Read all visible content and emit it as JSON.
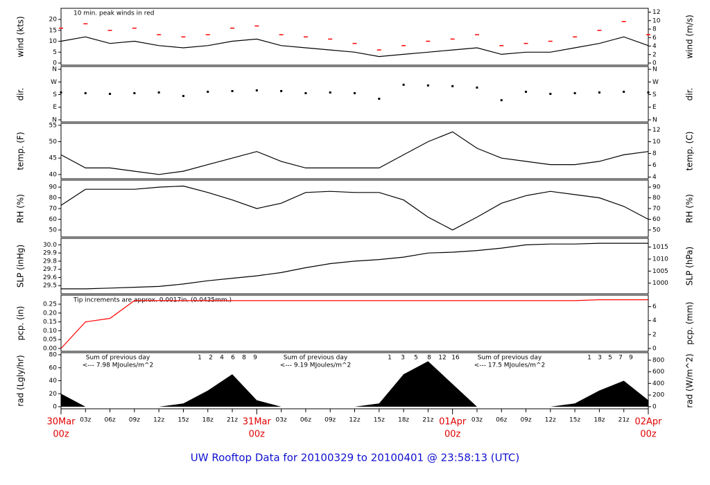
{
  "title": "UW Rooftop Data for 20100329  to  20100401 @ 23:58:13  (UTC)",
  "x_axis": {
    "x": [
      0,
      3,
      6,
      9,
      12,
      15,
      18,
      21,
      24,
      27,
      30,
      33,
      36,
      39,
      42,
      45,
      48,
      51,
      54,
      57,
      60,
      63,
      66,
      69,
      72
    ],
    "xlim": [
      0,
      72
    ],
    "xticks": [
      {
        "value": 3,
        "label": "03z"
      },
      {
        "value": 6,
        "label": "06z"
      },
      {
        "value": 9,
        "label": "09z"
      },
      {
        "value": 12,
        "label": "12z"
      },
      {
        "value": 15,
        "label": "15z"
      },
      {
        "value": 18,
        "label": "18z"
      },
      {
        "value": 21,
        "label": "21z"
      },
      {
        "value": 27,
        "label": "03z"
      },
      {
        "value": 30,
        "label": "06z"
      },
      {
        "value": 33,
        "label": "09z"
      },
      {
        "value": 36,
        "label": "12z"
      },
      {
        "value": 39,
        "label": "15z"
      },
      {
        "value": 42,
        "label": "18z"
      },
      {
        "value": 45,
        "label": "21z"
      },
      {
        "value": 51,
        "label": "03z"
      },
      {
        "value": 54,
        "label": "06z"
      },
      {
        "value": 57,
        "label": "09z"
      },
      {
        "value": 60,
        "label": "12z"
      },
      {
        "value": 63,
        "label": "15z"
      },
      {
        "value": 66,
        "label": "18z"
      },
      {
        "value": 69,
        "label": "21z"
      }
    ],
    "day_ticks": [
      {
        "value": 0,
        "label": "30Mar"
      },
      {
        "value": 24,
        "label": "31Mar"
      },
      {
        "value": 48,
        "label": "01Apr"
      },
      {
        "value": 72,
        "label": "02Apr"
      }
    ],
    "day_hours": [
      "00z",
      "00z",
      "00z",
      "00z"
    ]
  },
  "chart_data": [
    {
      "type": "line",
      "ylabel": "wind (kts)",
      "y2label": "wind (m/s)",
      "annotation": "10 min. peak winds in red",
      "ylim": [
        -0.95,
        25.1
      ],
      "yticks": [
        0,
        5,
        10,
        15,
        20
      ],
      "y2lim": [
        -0.49,
        12.9
      ],
      "y2ticks": [
        0,
        2,
        4,
        6,
        8,
        10,
        12
      ],
      "series": [
        {
          "color": "#000000",
          "mark": "line",
          "values": [
            10,
            12,
            9,
            10,
            8,
            7,
            8,
            10,
            11,
            8,
            7,
            6,
            5,
            3,
            4,
            5,
            6,
            7,
            4,
            5,
            5,
            7,
            9,
            12,
            8
          ]
        },
        {
          "color": "#ff0000",
          "mark": "dash",
          "values": [
            16,
            18,
            15,
            16,
            13,
            12,
            13,
            16,
            17,
            13,
            12,
            11,
            9,
            6,
            8,
            10,
            11,
            13,
            8,
            9,
            10,
            12,
            15,
            19,
            13
          ]
        }
      ]
    },
    {
      "type": "scatter",
      "ylabel": "dir.",
      "y2label": "dir.",
      "ylim": [
        -15,
        380
      ],
      "yticks": [
        {
          "value": 0,
          "label": "N"
        },
        {
          "value": 90,
          "label": "E"
        },
        {
          "value": 180,
          "label": "S"
        },
        {
          "value": 270,
          "label": "W"
        },
        {
          "value": 360,
          "label": "N"
        }
      ],
      "y2ticks": [
        {
          "value": 0,
          "label": "N"
        },
        {
          "value": 90,
          "label": "E"
        },
        {
          "value": 180,
          "label": "S"
        },
        {
          "value": 270,
          "label": "W"
        },
        {
          "value": 360,
          "label": "N"
        }
      ],
      "series": [
        {
          "color": "#000000",
          "values": [
            195,
            190,
            185,
            190,
            195,
            170,
            200,
            205,
            210,
            205,
            190,
            195,
            190,
            150,
            250,
            245,
            240,
            230,
            140,
            200,
            185,
            190,
            195,
            200,
            195
          ]
        }
      ]
    },
    {
      "type": "line",
      "ylabel": "temp. (F)",
      "y2label": "temp. (C)",
      "ylim": [
        38.7,
        55.6
      ],
      "yticks": [
        40,
        45,
        50,
        55
      ],
      "y2lim": [
        3.72,
        13.1
      ],
      "y2ticks": [
        4,
        6,
        8,
        10,
        12
      ],
      "series": [
        {
          "color": "#000000",
          "values": [
            46,
            42,
            42,
            41,
            40,
            41,
            43,
            45,
            47,
            44,
            42,
            42,
            42,
            42,
            46,
            50,
            53,
            48,
            45,
            44,
            43,
            43,
            44,
            46,
            47
          ]
        }
      ]
    },
    {
      "type": "line",
      "ylabel": "RH (%)",
      "y2label": "RH (%)",
      "ylim": [
        43.5,
        96.5
      ],
      "yticks": [
        50,
        60,
        70,
        80,
        90
      ],
      "y2lim": [
        43.5,
        96.5
      ],
      "y2ticks": [
        50,
        60,
        70,
        80,
        90
      ],
      "series": [
        {
          "color": "#000000",
          "values": [
            73,
            88,
            88,
            88,
            90,
            91,
            85,
            78,
            70,
            75,
            85,
            86,
            85,
            85,
            78,
            62,
            50,
            62,
            75,
            82,
            86,
            83,
            80,
            72,
            60
          ]
        }
      ]
    },
    {
      "type": "line",
      "ylabel": "SLP (inHg)",
      "y2label": "SLP (hPa)",
      "ylim": [
        29.4,
        30.08
      ],
      "yticks": [
        {
          "value": 29.5,
          "label": "29.5"
        },
        {
          "value": 29.6,
          "label": "29.6"
        },
        {
          "value": 29.7,
          "label": "29.7"
        },
        {
          "value": 29.8,
          "label": "29.8"
        },
        {
          "value": 29.9,
          "label": "29.9"
        },
        {
          "value": 30,
          "label": "30.0"
        }
      ],
      "y2lim": [
        995.6,
        1018.6
      ],
      "y2ticks": [
        1000,
        1005,
        1010,
        1015
      ],
      "series": [
        {
          "color": "#000000",
          "values": [
            29.46,
            29.46,
            29.47,
            29.48,
            29.49,
            29.52,
            29.56,
            29.59,
            29.62,
            29.66,
            29.72,
            29.77,
            29.8,
            29.82,
            29.85,
            29.9,
            29.91,
            29.93,
            29.96,
            30.0,
            30.01,
            30.01,
            30.02,
            30.02,
            30.02
          ]
        }
      ]
    },
    {
      "type": "line",
      "ylabel": "pcp. (in)",
      "y2label": "pcp. (mm)",
      "annotation": "Tip increments are approx. 0.0017in. (0.0435mm.)",
      "ylim": [
        -0.016,
        0.301
      ],
      "yticks": [
        {
          "value": 0,
          "label": "0.00"
        },
        0.05,
        {
          "value": 0.1,
          "label": "0.10"
        },
        0.15,
        {
          "value": 0.2,
          "label": "0.20"
        },
        0.25
      ],
      "y2lim": [
        -0.4,
        7.65
      ],
      "y2ticks": [
        0,
        2,
        4,
        6
      ],
      "series": [
        {
          "color": "#ff0000",
          "values": [
            0,
            0.15,
            0.17,
            0.27,
            0.27,
            0.27,
            0.27,
            0.27,
            0.27,
            0.27,
            0.27,
            0.27,
            0.27,
            0.27,
            0.27,
            0.27,
            0.27,
            0.27,
            0.27,
            0.27,
            0.27,
            0.27,
            0.275,
            0.275,
            0.275
          ]
        }
      ]
    },
    {
      "type": "area",
      "ylabel": "rad (Lgly/hr)",
      "y2label": "rad (W/m^2)",
      "ylim": [
        -3.2,
        83.2
      ],
      "yticks": [
        0,
        20,
        40,
        60,
        80
      ],
      "y2lim": [
        -37,
        930
      ],
      "y2ticks": [
        0,
        200,
        400,
        600,
        800
      ],
      "sum_title": "Sum of previous day",
      "sums": [
        "<--- 7.98 MJoules/m^2",
        "<--- 9.19 MJoules/m^2",
        "<--- 17.5 MJoules/m^2"
      ],
      "hour_marks": [
        [
          "1",
          "2",
          "4",
          "6",
          "8",
          "9"
        ],
        [
          "1",
          "3",
          "5",
          "8",
          "12",
          "16"
        ],
        [
          "1",
          "3",
          "5",
          "7",
          "9"
        ]
      ],
      "series": [
        {
          "color": "#000000",
          "values": [
            20,
            0,
            0,
            0,
            0,
            5,
            25,
            50,
            10,
            0,
            0,
            0,
            0,
            5,
            50,
            70,
            35,
            0,
            0,
            0,
            0,
            5,
            25,
            40,
            10
          ]
        }
      ]
    }
  ]
}
